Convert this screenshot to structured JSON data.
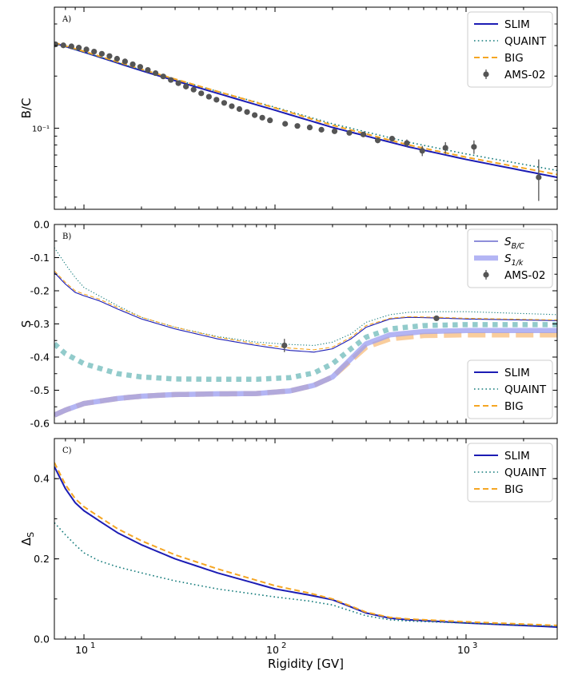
{
  "chart_data": [
    {
      "panel_tag": "A)",
      "type": "line",
      "xscale": "log",
      "yscale": "log",
      "xlim": [
        7,
        3000
      ],
      "ylim": [
        0.034,
        0.5
      ],
      "xlabel": "",
      "ylabel": "B/C",
      "yticks": [
        {
          "value": 0.1,
          "label": "10⁻¹"
        }
      ],
      "grid": false,
      "legend_position": "top-right",
      "series": [
        {
          "name": "SLIM",
          "style": "solid",
          "color": "#1c1cb4",
          "x": [
            7,
            10,
            20,
            50,
            100,
            200,
            500,
            1000,
            3000
          ],
          "y": [
            0.31,
            0.275,
            0.215,
            0.159,
            0.127,
            0.101,
            0.078,
            0.066,
            0.052
          ]
        },
        {
          "name": "QUAINT",
          "style": "dotted",
          "color": "#127a7a",
          "x": [
            7,
            10,
            20,
            50,
            100,
            200,
            500,
            1000,
            3000
          ],
          "y": [
            0.31,
            0.275,
            0.217,
            0.163,
            0.132,
            0.106,
            0.083,
            0.071,
            0.057
          ]
        },
        {
          "name": "BIG",
          "style": "dashed",
          "color": "#f5a623",
          "x": [
            7,
            10,
            20,
            50,
            100,
            200,
            500,
            1000,
            3000
          ],
          "y": [
            0.312,
            0.278,
            0.219,
            0.163,
            0.131,
            0.104,
            0.08,
            0.068,
            0.054
          ]
        },
        {
          "name": "AMS-02",
          "style": "errorbar",
          "color": "#555555",
          "x": [
            7.1,
            7.8,
            8.6,
            9.4,
            10.3,
            11.3,
            12.4,
            13.6,
            14.9,
            16.4,
            18.0,
            19.7,
            21.6,
            23.7,
            26.0,
            28.5,
            31.2,
            34.2,
            37.5,
            41.1,
            45.1,
            49.4,
            54.2,
            59.4,
            65.1,
            71.4,
            78.3,
            85.8,
            94.1,
            113,
            131,
            152,
            175,
            205,
            245,
            290,
            345,
            410,
            490,
            590,
            780,
            1100,
            2400
          ],
          "y": [
            0.305,
            0.301,
            0.297,
            0.292,
            0.285,
            0.277,
            0.269,
            0.261,
            0.252,
            0.243,
            0.234,
            0.226,
            0.217,
            0.208,
            0.199,
            0.19,
            0.182,
            0.174,
            0.167,
            0.159,
            0.152,
            0.146,
            0.14,
            0.134,
            0.129,
            0.124,
            0.119,
            0.115,
            0.111,
            0.106,
            0.103,
            0.101,
            0.098,
            0.096,
            0.094,
            0.092,
            0.085,
            0.087,
            0.082,
            0.074,
            0.077,
            0.078,
            0.052
          ],
          "yerr": [
            0.003,
            0.003,
            0.003,
            0.003,
            0.003,
            0.003,
            0.003,
            0.003,
            0.003,
            0.003,
            0.003,
            0.003,
            0.003,
            0.003,
            0.003,
            0.003,
            0.003,
            0.003,
            0.003,
            0.003,
            0.003,
            0.003,
            0.003,
            0.003,
            0.003,
            0.003,
            0.003,
            0.003,
            0.003,
            0.003,
            0.003,
            0.003,
            0.003,
            0.003,
            0.003,
            0.003,
            0.003,
            0.003,
            0.004,
            0.005,
            0.006,
            0.007,
            0.014
          ]
        }
      ]
    },
    {
      "panel_tag": "B)",
      "type": "line",
      "xscale": "log",
      "yscale": "linear",
      "xlim": [
        7,
        3000
      ],
      "ylim": [
        -0.6,
        0.0
      ],
      "xlabel": "",
      "ylabel": "S",
      "yticks": [
        {
          "value": 0.0,
          "label": "0.0"
        },
        {
          "value": -0.1,
          "label": "-0.1"
        },
        {
          "value": -0.2,
          "label": "-0.2"
        },
        {
          "value": -0.3,
          "label": "-0.3"
        },
        {
          "value": -0.4,
          "label": "-0.4"
        },
        {
          "value": -0.5,
          "label": "-0.5"
        },
        {
          "value": -0.6,
          "label": "-0.6"
        }
      ],
      "grid": false,
      "legend_style": {
        "position": "top-right",
        "entries": [
          {
            "main": "S",
            "sub": "B/C",
            "style": "thin-line",
            "color": "#1c1cb4"
          },
          {
            "main": "S",
            "sub": "1/k",
            "style": "thick-band",
            "color": "#9a9cf0"
          },
          {
            "main": "AMS-02",
            "sub": "",
            "style": "errorbar",
            "color": "#555555"
          }
        ]
      },
      "legend_model": {
        "position": "lower-right",
        "entries": [
          {
            "name": "SLIM",
            "style": "solid",
            "color": "#1c1cb4"
          },
          {
            "name": "QUAINT",
            "style": "dotted",
            "color": "#127a7a"
          },
          {
            "name": "BIG",
            "style": "dashed",
            "color": "#f5a623"
          }
        ]
      },
      "series": [
        {
          "name": "SLIM S_B/C",
          "style": "thin-solid",
          "color": "#1c1cb4",
          "x": [
            7,
            8,
            9,
            10,
            12,
            15,
            20,
            30,
            50,
            80,
            120,
            160,
            200,
            250,
            300,
            400,
            500,
            700,
            1000,
            3000
          ],
          "y": [
            -0.145,
            -0.18,
            -0.205,
            -0.215,
            -0.23,
            -0.255,
            -0.285,
            -0.315,
            -0.345,
            -0.365,
            -0.38,
            -0.385,
            -0.375,
            -0.345,
            -0.31,
            -0.285,
            -0.28,
            -0.282,
            -0.285,
            -0.29
          ]
        },
        {
          "name": "QUAINT S_B/C",
          "style": "thin-dotted",
          "color": "#127a7a",
          "x": [
            7,
            8,
            9,
            10,
            12,
            15,
            20,
            30,
            50,
            80,
            120,
            160,
            200,
            250,
            300,
            400,
            500,
            700,
            1000,
            3000
          ],
          "y": [
            -0.07,
            -0.12,
            -0.16,
            -0.19,
            -0.215,
            -0.245,
            -0.28,
            -0.31,
            -0.338,
            -0.355,
            -0.362,
            -0.365,
            -0.355,
            -0.33,
            -0.295,
            -0.272,
            -0.265,
            -0.263,
            -0.263,
            -0.272
          ]
        },
        {
          "name": "BIG S_B/C",
          "style": "thin-dashed",
          "color": "#f5a623",
          "x": [
            7,
            8,
            9,
            10,
            12,
            15,
            20,
            30,
            50,
            80,
            120,
            160,
            200,
            250,
            300,
            400,
            500,
            700,
            1000,
            3000
          ],
          "y": [
            -0.14,
            -0.175,
            -0.2,
            -0.21,
            -0.225,
            -0.25,
            -0.28,
            -0.31,
            -0.34,
            -0.36,
            -0.373,
            -0.378,
            -0.37,
            -0.34,
            -0.305,
            -0.283,
            -0.278,
            -0.28,
            -0.283,
            -0.288
          ]
        },
        {
          "name": "QUAINT S_1/k",
          "style": "thick-dotted",
          "color": "#8cc8c8",
          "x": [
            7,
            8,
            10,
            15,
            20,
            30,
            50,
            80,
            120,
            160,
            200,
            250,
            300,
            400,
            600,
            1000,
            3000
          ],
          "y": [
            -0.36,
            -0.39,
            -0.42,
            -0.45,
            -0.46,
            -0.466,
            -0.467,
            -0.467,
            -0.462,
            -0.448,
            -0.42,
            -0.375,
            -0.34,
            -0.315,
            -0.305,
            -0.302,
            -0.302
          ]
        },
        {
          "name": "BIG S_1/k",
          "style": "thick-dashed",
          "color": "#f8c891",
          "x": [
            7,
            8,
            10,
            15,
            20,
            30,
            50,
            80,
            120,
            160,
            200,
            250,
            300,
            400,
            600,
            1000,
            3000
          ],
          "y": [
            -0.575,
            -0.56,
            -0.54,
            -0.525,
            -0.518,
            -0.513,
            -0.511,
            -0.51,
            -0.502,
            -0.485,
            -0.46,
            -0.41,
            -0.37,
            -0.345,
            -0.335,
            -0.333,
            -0.333
          ]
        },
        {
          "name": "SLIM S_1/k",
          "style": "thick-solid",
          "color": "#9a9cf0",
          "x": [
            7,
            8,
            10,
            15,
            20,
            30,
            50,
            80,
            120,
            160,
            200,
            250,
            300,
            400,
            600,
            1000,
            3000
          ],
          "y": [
            -0.575,
            -0.56,
            -0.54,
            -0.525,
            -0.518,
            -0.513,
            -0.511,
            -0.51,
            -0.502,
            -0.485,
            -0.46,
            -0.405,
            -0.36,
            -0.333,
            -0.323,
            -0.32,
            -0.32
          ]
        },
        {
          "name": "AMS-02",
          "style": "errorbar",
          "color": "#555555",
          "x": [
            112,
            700
          ],
          "y": [
            -0.365,
            -0.283
          ],
          "yerr": [
            0.02,
            0.006
          ]
        }
      ]
    },
    {
      "panel_tag": "C)",
      "type": "line",
      "xscale": "log",
      "yscale": "linear",
      "xlim": [
        7,
        3000
      ],
      "ylim": [
        0.0,
        0.5
      ],
      "xlabel": "Rigidity [GV]",
      "ylabel": "ΔS",
      "xticks": [
        {
          "value": 10,
          "base": "10",
          "exp": "1"
        },
        {
          "value": 100,
          "base": "10",
          "exp": "2"
        },
        {
          "value": 1000,
          "base": "10",
          "exp": "3"
        }
      ],
      "yticks": [
        {
          "value": 0.0,
          "label": "0.0"
        },
        {
          "value": 0.2,
          "label": "0.2"
        },
        {
          "value": 0.4,
          "label": "0.4"
        }
      ],
      "grid": false,
      "legend_position": "top-right",
      "series": [
        {
          "name": "SLIM",
          "style": "solid",
          "color": "#1c1cb4",
          "x": [
            7,
            8,
            9,
            10,
            12,
            15,
            20,
            30,
            50,
            100,
            150,
            200,
            250,
            300,
            400,
            500,
            1000,
            3000
          ],
          "y": [
            0.43,
            0.375,
            0.34,
            0.32,
            0.295,
            0.265,
            0.235,
            0.2,
            0.165,
            0.125,
            0.11,
            0.098,
            0.08,
            0.065,
            0.052,
            0.048,
            0.04,
            0.03
          ]
        },
        {
          "name": "QUAINT",
          "style": "dotted",
          "color": "#127a7a",
          "x": [
            7,
            8,
            9,
            10,
            12,
            15,
            20,
            30,
            50,
            100,
            150,
            200,
            250,
            300,
            400,
            500,
            1000,
            3000
          ],
          "y": [
            0.29,
            0.26,
            0.235,
            0.215,
            0.195,
            0.18,
            0.165,
            0.145,
            0.125,
            0.105,
            0.095,
            0.085,
            0.07,
            0.058,
            0.048,
            0.045,
            0.04,
            0.032
          ]
        },
        {
          "name": "BIG",
          "style": "dashed",
          "color": "#f5a623",
          "x": [
            7,
            8,
            9,
            10,
            12,
            15,
            20,
            30,
            50,
            100,
            150,
            200,
            250,
            300,
            400,
            500,
            1000,
            3000
          ],
          "y": [
            0.44,
            0.385,
            0.35,
            0.33,
            0.305,
            0.275,
            0.245,
            0.21,
            0.175,
            0.133,
            0.115,
            0.1,
            0.082,
            0.067,
            0.054,
            0.05,
            0.043,
            0.034
          ]
        }
      ]
    }
  ]
}
